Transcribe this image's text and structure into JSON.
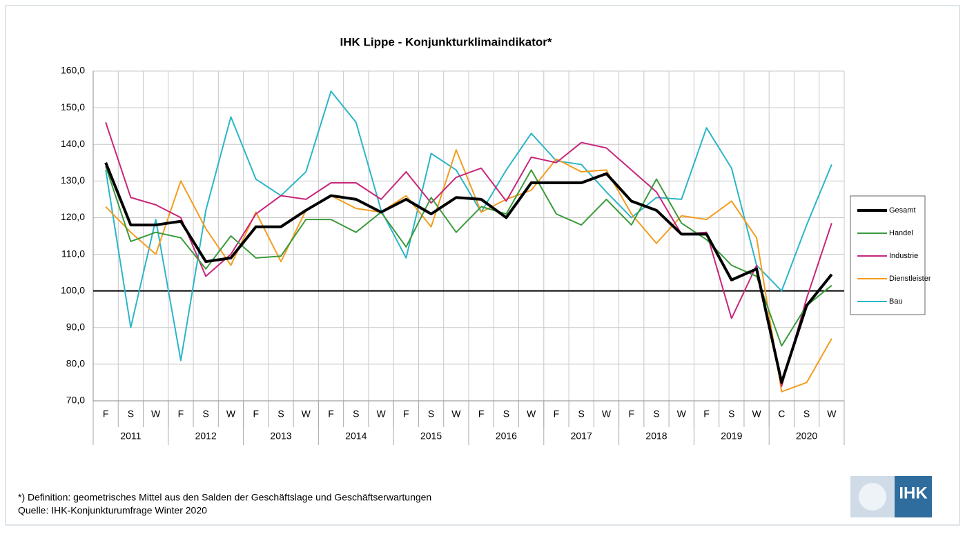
{
  "chart_data": {
    "type": "line",
    "title": "IHK Lippe - Konjunkturklimaindikator*",
    "categories": [
      "F",
      "S",
      "W",
      "F",
      "S",
      "W",
      "F",
      "S",
      "W",
      "F",
      "S",
      "W",
      "F",
      "S",
      "W",
      "F",
      "S",
      "W",
      "F",
      "S",
      "W",
      "F",
      "S",
      "W",
      "F",
      "S",
      "W",
      "C",
      "S",
      "W"
    ],
    "groups": [
      "2011",
      "2012",
      "2013",
      "2014",
      "2015",
      "2016",
      "2017",
      "2018",
      "2019",
      "2020"
    ],
    "series": [
      {
        "name": "Gesamt",
        "color": "#000000",
        "values": [
          135,
          118,
          118,
          119,
          108,
          109,
          117.5,
          117.5,
          122,
          126,
          125,
          121.5,
          125,
          121,
          125.5,
          125,
          120,
          129.5,
          129.5,
          129.5,
          132,
          124.5,
          122,
          115.5,
          115.5,
          103,
          106,
          75,
          96,
          104.5
        ]
      },
      {
        "name": "Handel",
        "color": "#3a9a3a",
        "values": [
          134,
          113.5,
          116,
          114.5,
          106,
          115,
          109,
          109.5,
          119.5,
          119.5,
          116,
          121.5,
          112,
          125.5,
          116,
          123,
          121,
          133,
          121,
          118,
          125,
          118,
          130.5,
          118.5,
          114,
          107,
          104,
          85,
          96,
          101.5
        ]
      },
      {
        "name": "Industrie",
        "color": "#c8257a",
        "values": [
          146,
          125.5,
          123.5,
          120,
          104,
          110,
          121,
          126,
          125,
          129.5,
          129.5,
          125,
          132.5,
          124,
          131,
          133.5,
          124.5,
          136.5,
          135,
          140.5,
          139,
          133,
          127,
          115.5,
          116,
          92.5,
          107,
          74,
          98,
          118.5
        ]
      },
      {
        "name": "Dienstleister",
        "color": "#f39c1f",
        "values": [
          123,
          116,
          110,
          130,
          117,
          107,
          121.5,
          108,
          122,
          126,
          122.5,
          121.5,
          126,
          117.5,
          138.5,
          121.5,
          125,
          127.5,
          136,
          132.5,
          133,
          121,
          113,
          120.5,
          119.5,
          124.5,
          114.5,
          72.5,
          75,
          87
        ]
      },
      {
        "name": "Bau",
        "color": "#2bb5c8",
        "values": [
          133,
          90,
          119.5,
          81,
          122,
          147.5,
          130.5,
          126,
          132.5,
          154.5,
          146,
          122,
          109,
          137.5,
          133,
          121.5,
          133,
          143,
          135.5,
          134.5,
          127,
          120,
          125.5,
          125,
          144.5,
          133.5,
          107,
          100,
          118,
          134.5
        ]
      }
    ],
    "reference_line": 100,
    "ylim": [
      70,
      160
    ],
    "yticks": [
      {
        "value": 70,
        "label": "70,0"
      },
      {
        "value": 80,
        "label": "80,0"
      },
      {
        "value": 90,
        "label": "90,0"
      },
      {
        "value": 100,
        "label": "100,0"
      },
      {
        "value": 110,
        "label": "110,0"
      },
      {
        "value": 120,
        "label": "120,0"
      },
      {
        "value": 130,
        "label": "130,0"
      },
      {
        "value": 140,
        "label": "140,0"
      },
      {
        "value": 150,
        "label": "150,0"
      },
      {
        "value": 160,
        "label": "160,0"
      }
    ],
    "grid": true,
    "legend": "right"
  },
  "footnotes": [
    "*) Definition: geometrisches Mittel aus den Salden der Geschäftslage und Geschäftserwartungen",
    "Quelle: IHK-Konjunkturumfrage Winter 2020"
  ],
  "logo": "IHK"
}
